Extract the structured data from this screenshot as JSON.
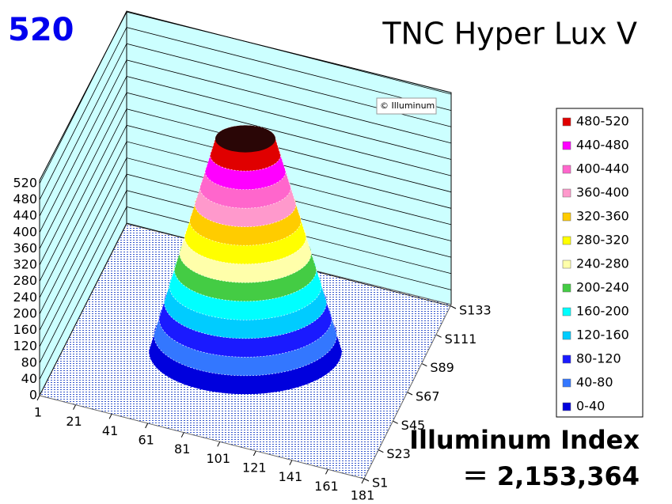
{
  "chart_data": {
    "type": "surface3d",
    "title": "TNC Hyper Lux V",
    "peak": 520,
    "watermark": "© Illuminum",
    "index_title": "Illuminum Index",
    "index_value": "＝ 2,153,364",
    "xlim": [
      1,
      181
    ],
    "xticks": [
      1,
      21,
      41,
      61,
      81,
      101,
      121,
      141,
      161,
      181
    ],
    "ylim": [
      1,
      133
    ],
    "yticks": [
      {
        "value": 1,
        "label": "S1"
      },
      {
        "value": 23,
        "label": "S23"
      },
      {
        "value": 45,
        "label": "S45"
      },
      {
        "value": 67,
        "label": "S67"
      },
      {
        "value": 89,
        "label": "S89"
      },
      {
        "value": 111,
        "label": "S111"
      },
      {
        "value": 133,
        "label": "S133"
      }
    ],
    "zlim": [
      0,
      520
    ],
    "zticks": [
      0,
      40,
      80,
      120,
      160,
      200,
      240,
      280,
      320,
      360,
      400,
      440,
      480,
      520
    ],
    "series": [
      {
        "name": "480-520",
        "color": "#e00000",
        "range": [
          480,
          520
        ]
      },
      {
        "name": "440-480",
        "color": "#ff00ff",
        "range": [
          440,
          480
        ]
      },
      {
        "name": "400-440",
        "color": "#ff66cc",
        "range": [
          400,
          440
        ]
      },
      {
        "name": "360-400",
        "color": "#ff99cc",
        "range": [
          360,
          400
        ]
      },
      {
        "name": "320-360",
        "color": "#ffcc00",
        "range": [
          320,
          360
        ]
      },
      {
        "name": "280-320",
        "color": "#ffff00",
        "range": [
          280,
          320
        ]
      },
      {
        "name": "240-280",
        "color": "#ffffaa",
        "range": [
          240,
          280
        ]
      },
      {
        "name": "200-240",
        "color": "#44cc44",
        "range": [
          200,
          240
        ]
      },
      {
        "name": "160-200",
        "color": "#00ffff",
        "range": [
          160,
          200
        ]
      },
      {
        "name": "120-160",
        "color": "#00ccff",
        "range": [
          120,
          160
        ]
      },
      {
        "name": "80-120",
        "color": "#1a1aff",
        "range": [
          80,
          120
        ]
      },
      {
        "name": "40-80",
        "color": "#3377ff",
        "range": [
          40,
          80
        ]
      },
      {
        "name": "0-40",
        "color": "#0000dd",
        "range": [
          0,
          40
        ]
      }
    ]
  }
}
